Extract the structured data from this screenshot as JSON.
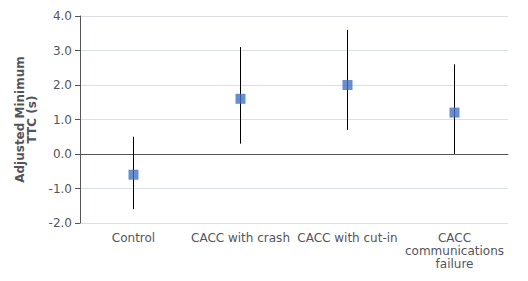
{
  "chart_data": {
    "type": "scatter",
    "categories": [
      "Control",
      "CACC with crash",
      "CACC with cut-in",
      "CACC\ncommunications\nfailure"
    ],
    "values": [
      -0.6,
      1.6,
      2.0,
      1.2
    ],
    "ci_low": [
      -1.6,
      0.3,
      0.7,
      0.0
    ],
    "ci_high": [
      0.5,
      3.1,
      3.6,
      2.6
    ],
    "color": "#4472C4",
    "marker": "square",
    "ylabel": "Adjusted Minimum\nTTC (s)",
    "ylim": [
      -2.0,
      4.0
    ],
    "yticks": [
      {
        "value": -2.0,
        "label": "-2.0"
      },
      {
        "value": -1.0,
        "label": "-1.0"
      },
      {
        "value": 0.0,
        "label": "0.0"
      },
      {
        "value": 1.0,
        "label": "1.0"
      },
      {
        "value": 2.0,
        "label": "2.0"
      },
      {
        "value": 3.0,
        "label": "3.0"
      },
      {
        "value": 4.0,
        "label": "4.0"
      }
    ],
    "grid": true
  }
}
